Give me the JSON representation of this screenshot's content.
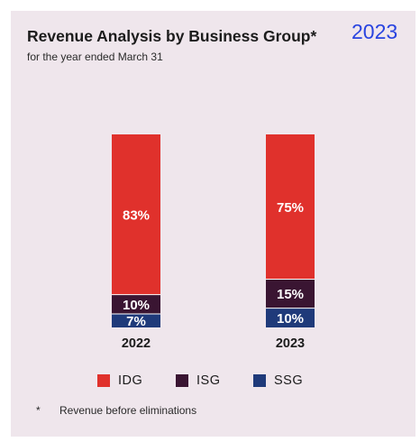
{
  "header": {
    "title": "Revenue Analysis by Business Group*",
    "subtitle": "for the year ended March 31",
    "year_badge": "2023"
  },
  "footnote": {
    "marker": "*",
    "text": "Revenue before eliminations"
  },
  "colors": {
    "IDG": "#e0312c",
    "ISG": "#3a1532",
    "SSG": "#1f3a7a",
    "background": "#efe6ec",
    "accent": "#2944e0"
  },
  "chart_data": {
    "type": "bar",
    "stacked": true,
    "categories": [
      "2022",
      "2023"
    ],
    "series": [
      {
        "name": "SSG",
        "values": [
          7,
          10
        ],
        "color": "#1f3a7a"
      },
      {
        "name": "ISG",
        "values": [
          10,
          15
        ],
        "color": "#3a1532"
      },
      {
        "name": "IDG",
        "values": [
          83,
          75
        ],
        "color": "#e0312c"
      }
    ],
    "value_suffix": "%",
    "ylim": [
      0,
      100
    ],
    "grid": false,
    "legend_position": "bottom",
    "legend": [
      {
        "name": "IDG",
        "color": "#e0312c"
      },
      {
        "name": "ISG",
        "color": "#3a1532"
      },
      {
        "name": "SSG",
        "color": "#1f3a7a"
      }
    ]
  }
}
